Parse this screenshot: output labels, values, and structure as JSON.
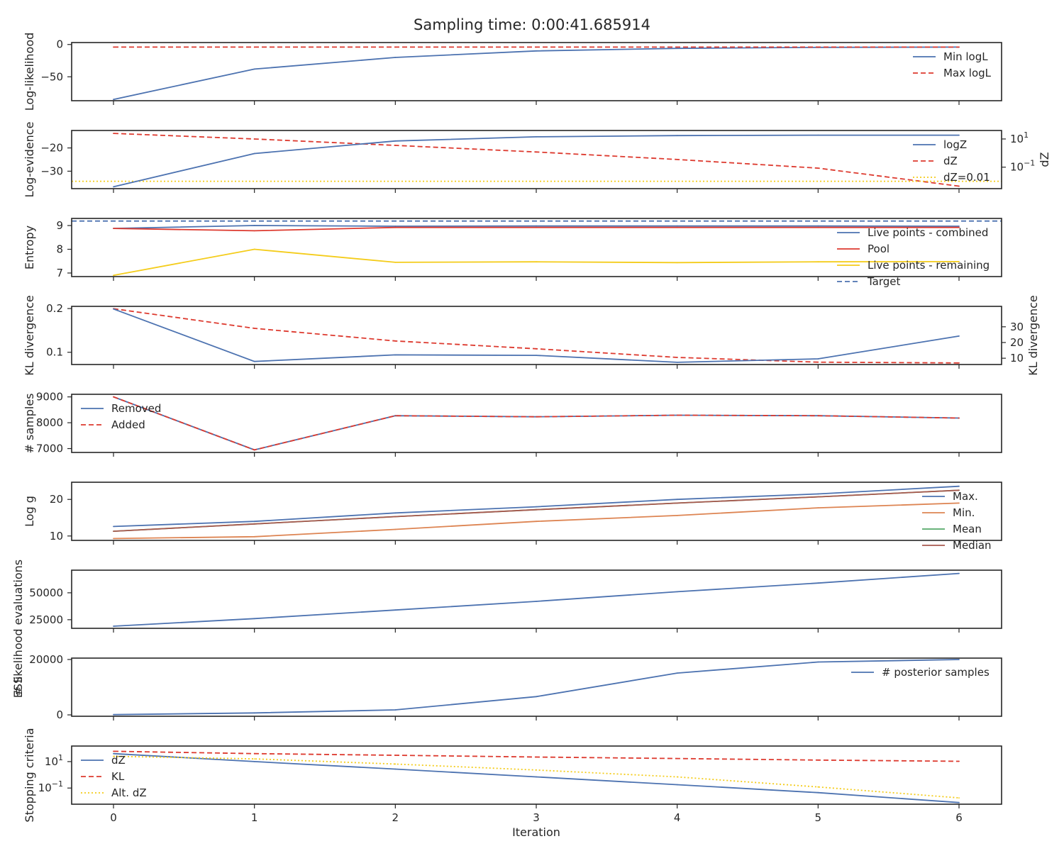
{
  "figure": {
    "title": "Sampling time: 0:00:41.685914"
  },
  "colors": {
    "blue": "#4c72b0",
    "red": "#dd3a2f",
    "yellow": "#f4cc1a",
    "orange": "#dd8452",
    "green": "#55a868",
    "brown": "#a8594f"
  },
  "chart_data": [
    {
      "type": "line",
      "ylabel": "Log-likelihood",
      "ylim": [
        -87,
        3
      ],
      "yticks": [
        {
          "v": 0,
          "label": "0"
        },
        {
          "v": -50,
          "label": "−50"
        }
      ],
      "x": [
        0,
        1,
        2,
        3,
        4,
        5,
        6
      ],
      "series": [
        {
          "name": "Min logL",
          "color": "#4c72b0",
          "dash": "solid",
          "values": [
            -85,
            -38,
            -20,
            -10,
            -6,
            -4.5,
            -4
          ]
        },
        {
          "name": "Max logL",
          "color": "#dd3a2f",
          "dash": "dashed",
          "values": [
            -4,
            -4,
            -4,
            -4,
            -4,
            -4,
            -4
          ]
        }
      ],
      "legend": "upper right"
    },
    {
      "type": "line",
      "ylabel": "Log-evidence",
      "ylim": [
        -37.5,
        -12.5
      ],
      "yticks": [
        {
          "v": -20,
          "label": "−20"
        },
        {
          "v": -30,
          "label": "−30"
        }
      ],
      "x": [
        0,
        1,
        2,
        3,
        4,
        5,
        6
      ],
      "series": [
        {
          "name": "logZ",
          "color": "#4c72b0",
          "dash": "solid",
          "axis": "left",
          "values": [
            -36.7,
            -22.4,
            -17,
            -15.2,
            -14.7,
            -14.5,
            -14.5
          ]
        }
      ],
      "y2": {
        "label": "dZ",
        "scale": "log",
        "ylim": [
          0.003,
          40
        ],
        "yticks": [
          {
            "v": 10,
            "label": "10^1"
          },
          {
            "v": 0.1,
            "label": "10^-1"
          }
        ],
        "series": [
          {
            "name": "dZ",
            "color": "#dd3a2f",
            "dash": "dashed",
            "values": [
              25,
              10,
              3.5,
              1.2,
              0.35,
              0.085,
              0.0045
            ]
          },
          {
            "name": "dZ=0.01",
            "color": "#f4cc1a",
            "dash": "dotted",
            "values": [
              0.01,
              0.01,
              0.01,
              0.01,
              0.01,
              0.01,
              0.01
            ],
            "span": "full"
          }
        ]
      },
      "legend": "right"
    },
    {
      "type": "line",
      "ylabel": "Entropy",
      "ylim": [
        6.85,
        9.3
      ],
      "yticks": [
        {
          "v": 9,
          "label": "9"
        },
        {
          "v": 8,
          "label": "8"
        },
        {
          "v": 7,
          "label": "7"
        }
      ],
      "x": [
        0,
        1,
        2,
        3,
        4,
        5,
        6
      ],
      "series": [
        {
          "name": "Live points - combined",
          "color": "#4c72b0",
          "dash": "solid",
          "values": [
            8.88,
            9.0,
            8.97,
            8.98,
            8.98,
            8.98,
            8.97
          ]
        },
        {
          "name": "Pool",
          "color": "#dd3a2f",
          "dash": "solid",
          "values": [
            8.88,
            8.78,
            8.92,
            8.92,
            8.92,
            8.92,
            8.92
          ]
        },
        {
          "name": "Live points - remaining",
          "color": "#f4cc1a",
          "dash": "solid",
          "values": [
            6.9,
            8.0,
            7.45,
            7.47,
            7.44,
            7.47,
            7.48
          ]
        },
        {
          "name": "Target",
          "color": "#4c72b0",
          "dash": "dashed",
          "values": [
            9.19,
            9.19,
            9.19,
            9.19,
            9.19,
            9.19,
            9.19
          ],
          "span": "full"
        }
      ],
      "legend": "lower right"
    },
    {
      "type": "line",
      "ylabel": "KL divergence",
      "ylim": [
        0.072,
        0.205
      ],
      "yticks": [
        {
          "v": 0.2,
          "label": "0.2"
        },
        {
          "v": 0.1,
          "label": "0.1"
        }
      ],
      "x": [
        0,
        1,
        2,
        3,
        4,
        5,
        6
      ],
      "series": [
        {
          "name": "",
          "color": "#4c72b0",
          "dash": "solid",
          "axis": "left",
          "values": [
            0.199,
            0.079,
            0.094,
            0.093,
            0.077,
            0.085,
            0.137
          ]
        }
      ],
      "y2": {
        "label": "KL divergence",
        "scale": "linear",
        "ylim": [
          6,
          43
        ],
        "yticks": [
          {
            "v": 30,
            "label": "30"
          },
          {
            "v": 20,
            "label": "20"
          },
          {
            "v": 10,
            "label": "10"
          }
        ],
        "series": [
          {
            "name": "",
            "color": "#dd3a2f",
            "dash": "dashed",
            "values": [
              41.5,
              29,
              21,
              16,
              10.5,
              7.5,
              7
            ]
          }
        ]
      }
    },
    {
      "type": "line",
      "ylabel": "# samples",
      "ylim": [
        6850,
        9100
      ],
      "yticks": [
        {
          "v": 9000,
          "label": "9000"
        },
        {
          "v": 8000,
          "label": "8000"
        },
        {
          "v": 7000,
          "label": "7000"
        }
      ],
      "x": [
        0,
        1,
        2,
        3,
        4,
        5,
        6
      ],
      "series": [
        {
          "name": "Removed",
          "color": "#4c72b0",
          "dash": "solid",
          "values": [
            9000,
            6950,
            8270,
            8230,
            8290,
            8270,
            8180
          ]
        },
        {
          "name": "Added",
          "color": "#dd3a2f",
          "dash": "dashed",
          "values": [
            9000,
            6950,
            8270,
            8230,
            8290,
            8270,
            8180
          ]
        }
      ],
      "legend": "upper left"
    },
    {
      "type": "line",
      "ylabel": "Log g",
      "ylim": [
        8.8,
        24.7
      ],
      "yticks": [
        {
          "v": 20,
          "label": "20"
        },
        {
          "v": 10,
          "label": "10"
        }
      ],
      "x": [
        0,
        1,
        2,
        3,
        4,
        5,
        6
      ],
      "series": [
        {
          "name": "Max.",
          "color": "#4c72b0",
          "dash": "solid",
          "values": [
            12.6,
            14,
            16.3,
            18,
            20,
            21.5,
            23.6
          ]
        },
        {
          "name": "Min.",
          "color": "#dd8452",
          "dash": "solid",
          "values": [
            9.3,
            9.8,
            11.8,
            14,
            15.6,
            17.7,
            19
          ]
        },
        {
          "name": "Mean",
          "color": "#55a868",
          "dash": "solid",
          "values": [
            11.3,
            13.3,
            15.3,
            17.2,
            19,
            20.7,
            22.5
          ]
        },
        {
          "name": "Median",
          "color": "#a8594f",
          "dash": "solid",
          "values": [
            11.3,
            13.3,
            15.3,
            17.2,
            19,
            20.7,
            22.5
          ]
        }
      ],
      "legend": "lower right"
    },
    {
      "type": "line",
      "ylabel": "# likelihood evaluations",
      "ylim": [
        17000,
        71000
      ],
      "yticks": [
        {
          "v": 50000,
          "label": "50000"
        },
        {
          "v": 25000,
          "label": "25000"
        }
      ],
      "x": [
        0,
        1,
        2,
        3,
        4,
        5,
        6
      ],
      "series": [
        {
          "name": "",
          "color": "#4c72b0",
          "dash": "solid",
          "values": [
            19000,
            26000,
            34000,
            42000,
            51000,
            59000,
            68000
          ]
        }
      ]
    },
    {
      "type": "line",
      "ylabel": "ESS",
      "ylim": [
        -500,
        20500
      ],
      "yticks": [
        {
          "v": 20000,
          "label": "20000"
        },
        {
          "v": 0,
          "label": "0"
        }
      ],
      "x": [
        0,
        1,
        2,
        3,
        4,
        5,
        6
      ],
      "series": [
        {
          "name": "# posterior samples",
          "color": "#4c72b0",
          "dash": "solid",
          "values": [
            100,
            700,
            1800,
            6600,
            15100,
            19100,
            20000
          ]
        }
      ],
      "legend": "upper right"
    },
    {
      "type": "line",
      "ylabel": "Stopping criteria",
      "xlabel": "Iteration",
      "scale": "log",
      "ylim": [
        0.006,
        150
      ],
      "yticks": [
        {
          "v": 10,
          "label": "10^1"
        },
        {
          "v": 0.1,
          "label": "10^-1"
        }
      ],
      "x": [
        0,
        1,
        2,
        3,
        4,
        5,
        6
      ],
      "series": [
        {
          "name": "dZ",
          "color": "#4c72b0",
          "dash": "solid",
          "values": [
            40,
            10,
            2.7,
            0.7,
            0.18,
            0.045,
            0.008
          ]
        },
        {
          "name": "KL",
          "color": "#dd3a2f",
          "dash": "dashed",
          "values": [
            60,
            40,
            30,
            22,
            17,
            13,
            10.5
          ]
        },
        {
          "name": "Alt. dZ",
          "color": "#f4cc1a",
          "dash": "dotted",
          "values": [
            25,
            16,
            6.5,
            2.3,
            0.7,
            0.12,
            0.018
          ]
        }
      ],
      "legend": "lower left"
    }
  ],
  "xticks": [
    "0",
    "1",
    "2",
    "3",
    "4",
    "5",
    "6"
  ]
}
